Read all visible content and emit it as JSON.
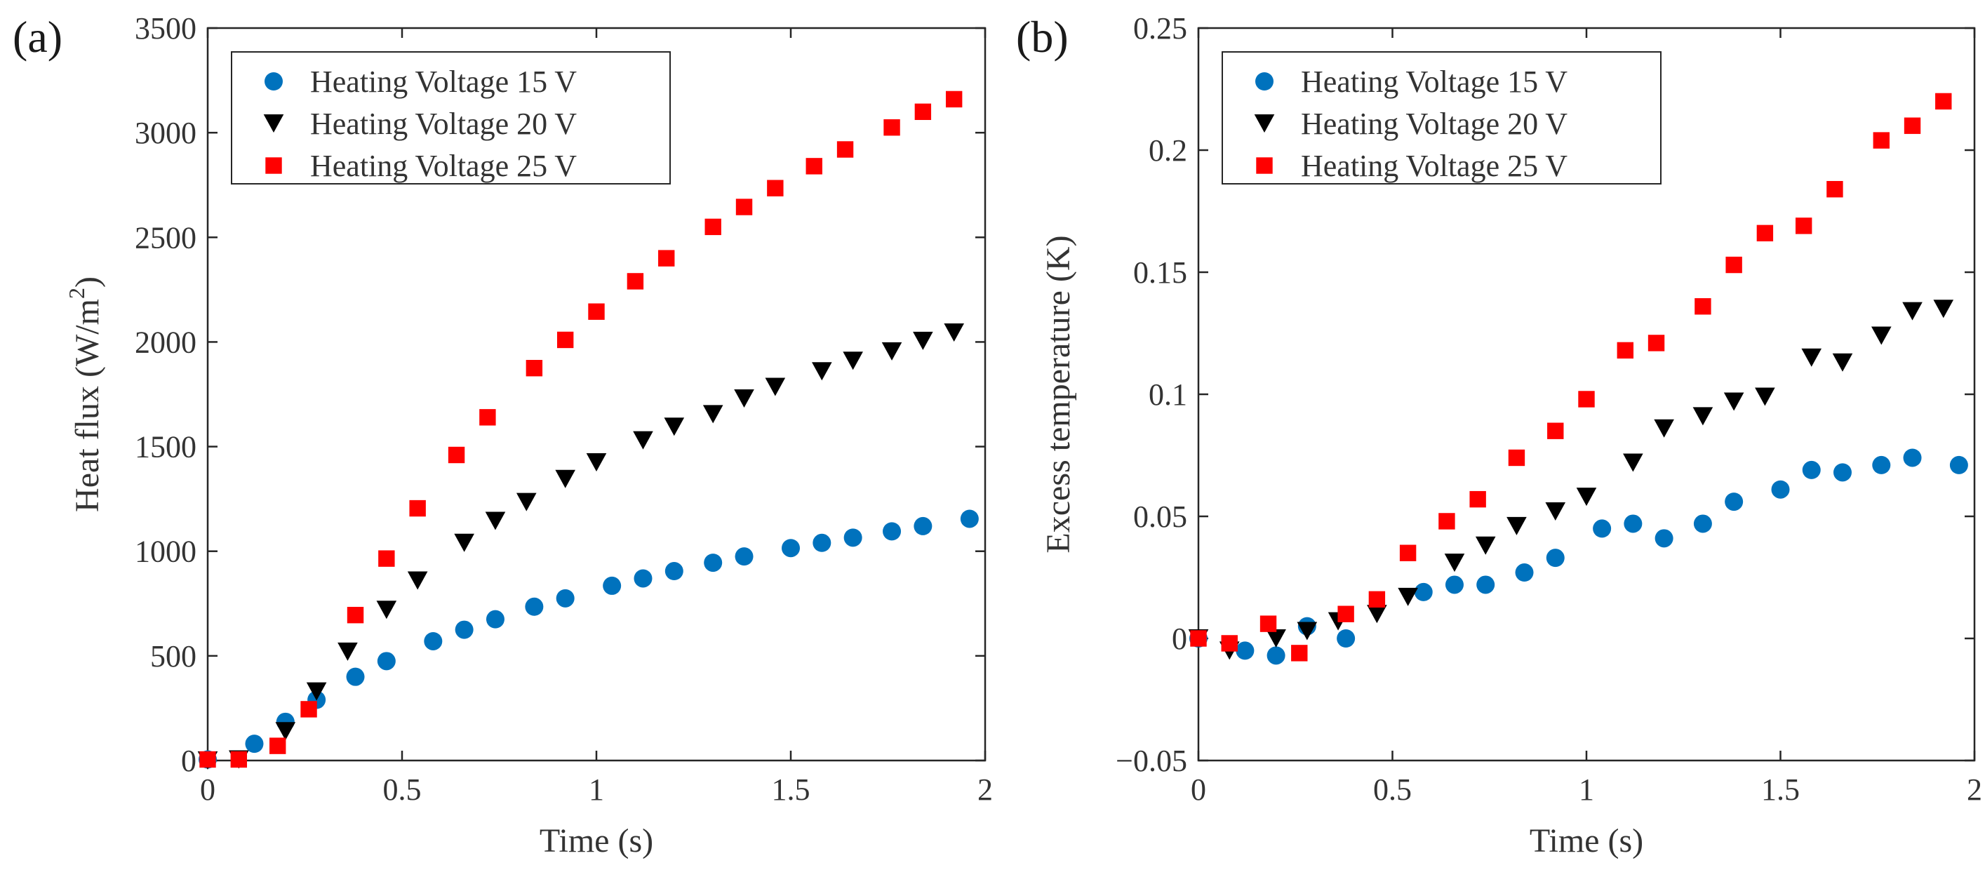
{
  "chart_data": [
    {
      "panel_label": "(a)",
      "type": "scatter",
      "title": "",
      "xlabel": "Time (s)",
      "ylabel": "Heat flux (W/m",
      "ylabel_sup": "2",
      "ylabel_close": ")",
      "xlim": [
        0,
        2
      ],
      "ylim": [
        0,
        3500
      ],
      "xticks": [
        0,
        0.5,
        1,
        1.5,
        2
      ],
      "xtick_labels": [
        "0",
        "0.5",
        "1",
        "1.5",
        "2"
      ],
      "yticks": [
        0,
        500,
        1000,
        1500,
        2000,
        2500,
        3000,
        3500
      ],
      "ytick_labels": [
        "0",
        "500",
        "1000",
        "1500",
        "2000",
        "2500",
        "3000",
        "3500"
      ],
      "grid": false,
      "legend_position": "top-left",
      "series": [
        {
          "name": "Heating Voltage 15 V",
          "marker": "circle",
          "color": "#0072bd",
          "x": [
            0,
            0.12,
            0.2,
            0.28,
            0.38,
            0.46,
            0.58,
            0.66,
            0.74,
            0.84,
            0.92,
            1.04,
            1.12,
            1.2,
            1.3,
            1.38,
            1.5,
            1.58,
            1.66,
            1.76,
            1.84,
            1.96
          ],
          "y": [
            5,
            80,
            185,
            290,
            400,
            475,
            570,
            625,
            675,
            735,
            775,
            835,
            870,
            905,
            945,
            975,
            1015,
            1040,
            1065,
            1095,
            1120,
            1155
          ]
        },
        {
          "name": "Heating Voltage 20 V",
          "marker": "triangle-down",
          "color": "#000000",
          "x": [
            0,
            0.08,
            0.2,
            0.28,
            0.36,
            0.46,
            0.54,
            0.66,
            0.74,
            0.82,
            0.92,
            1.0,
            1.12,
            1.2,
            1.3,
            1.38,
            1.46,
            1.58,
            1.66,
            1.76,
            1.84,
            1.92
          ],
          "y": [
            0,
            5,
            140,
            330,
            520,
            720,
            860,
            1040,
            1145,
            1235,
            1345,
            1425,
            1530,
            1595,
            1655,
            1730,
            1785,
            1860,
            1910,
            1955,
            2005,
            2045
          ]
        },
        {
          "name": "Heating Voltage 25 V",
          "marker": "square",
          "color": "#ff0000",
          "x": [
            0,
            0.08,
            0.18,
            0.26,
            0.38,
            0.46,
            0.54,
            0.64,
            0.72,
            0.84,
            0.92,
            1.0,
            1.1,
            1.18,
            1.3,
            1.38,
            1.46,
            1.56,
            1.64,
            1.76,
            1.84,
            1.92
          ],
          "y": [
            5,
            5,
            70,
            245,
            695,
            965,
            1205,
            1460,
            1640,
            1875,
            2010,
            2145,
            2290,
            2400,
            2550,
            2645,
            2735,
            2840,
            2920,
            3025,
            3100,
            3160
          ]
        }
      ]
    },
    {
      "panel_label": "(b)",
      "type": "scatter",
      "title": "",
      "xlabel": "Time (s)",
      "ylabel": "Excess temperature (K)",
      "xlim": [
        0,
        2
      ],
      "ylim": [
        -0.05,
        0.25
      ],
      "xticks": [
        0,
        0.5,
        1,
        1.5,
        2
      ],
      "xtick_labels": [
        "0",
        "0.5",
        "1",
        "1.5",
        "2"
      ],
      "yticks": [
        -0.05,
        0,
        0.05,
        0.1,
        0.15,
        0.2,
        0.25
      ],
      "ytick_labels": [
        "−0.05",
        "0",
        "0.05",
        "0.1",
        "0.15",
        "0.2",
        "0.25"
      ],
      "grid": false,
      "legend_position": "top-left",
      "series": [
        {
          "name": "Heating Voltage 15 V",
          "marker": "circle",
          "color": "#0072bd",
          "x": [
            0,
            0.12,
            0.2,
            0.28,
            0.38,
            0.58,
            0.66,
            0.74,
            0.84,
            0.92,
            1.04,
            1.12,
            1.2,
            1.3,
            1.38,
            1.5,
            1.58,
            1.66,
            1.76,
            1.84,
            1.96
          ],
          "y": [
            0,
            -0.005,
            -0.007,
            0.005,
            0,
            0.019,
            0.022,
            0.022,
            0.027,
            0.033,
            0.045,
            0.047,
            0.041,
            0.047,
            0.056,
            0.061,
            0.069,
            0.068,
            0.071,
            0.074,
            0.071
          ]
        },
        {
          "name": "Heating Voltage 20 V",
          "marker": "triangle-down",
          "color": "#000000",
          "x": [
            0,
            0.08,
            0.2,
            0.28,
            0.36,
            0.46,
            0.54,
            0.66,
            0.74,
            0.82,
            0.92,
            1.0,
            1.12,
            1.2,
            1.3,
            1.38,
            1.46,
            1.58,
            1.66,
            1.76,
            1.84,
            1.92
          ],
          "y": [
            0,
            -0.005,
            0,
            0.003,
            0.007,
            0.01,
            0.017,
            0.031,
            0.038,
            0.046,
            0.052,
            0.058,
            0.072,
            0.086,
            0.091,
            0.097,
            0.099,
            0.115,
            0.113,
            0.124,
            0.134,
            0.135
          ]
        },
        {
          "name": "Heating Voltage 25 V",
          "marker": "square",
          "color": "#ff0000",
          "x": [
            0,
            0.08,
            0.18,
            0.26,
            0.38,
            0.46,
            0.54,
            0.64,
            0.72,
            0.82,
            0.92,
            1.0,
            1.1,
            1.18,
            1.3,
            1.38,
            1.46,
            1.56,
            1.64,
            1.76,
            1.84,
            1.92
          ],
          "y": [
            0,
            -0.002,
            0.006,
            -0.006,
            0.01,
            0.016,
            0.035,
            0.048,
            0.057,
            0.074,
            0.085,
            0.098,
            0.118,
            0.121,
            0.136,
            0.153,
            0.166,
            0.169,
            0.184,
            0.204,
            0.21,
            0.22
          ]
        }
      ]
    }
  ]
}
